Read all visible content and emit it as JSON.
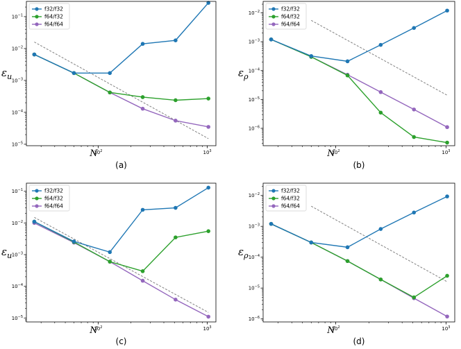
{
  "series_colors": {
    "f32/f32": "#1f77b4",
    "f64/f32": "#2ca02c",
    "f64/f64": "#9467bd",
    "reference": "#808080"
  },
  "chart_data": [
    {
      "type": "line",
      "caption": "(a)",
      "xlabel": "N",
      "ylabel": "ε",
      "ylabel_sub": "u",
      "xscale": "log",
      "yscale": "log",
      "xlim": [
        22,
        1200
      ],
      "ylim": [
        9e-06,
        0.3
      ],
      "xticks": [
        {
          "v": 100,
          "b": "10",
          "e": "2"
        },
        {
          "v": 1000,
          "b": "10",
          "e": "3"
        }
      ],
      "yticks": [
        {
          "v": 1e-05,
          "b": "10",
          "e": "−5"
        },
        {
          "v": 0.0001,
          "b": "10",
          "e": "−4"
        },
        {
          "v": 0.001,
          "b": "10",
          "e": "−3"
        },
        {
          "v": 0.01,
          "b": "10",
          "e": "−2"
        },
        {
          "v": 0.1,
          "b": "10",
          "e": "−1"
        }
      ],
      "legend_position": "top-left",
      "x": [
        26,
        60,
        128,
        256,
        512,
        1024
      ],
      "series": [
        {
          "name": "f32/f32",
          "values": [
            0.0065,
            0.0017,
            0.0017,
            0.014,
            0.018,
            0.27
          ]
        },
        {
          "name": "f64/f32",
          "values": [
            0.0065,
            0.0017,
            0.00042,
            0.0003,
            0.00024,
            0.00027
          ]
        },
        {
          "name": "f64/f64",
          "values": [
            0.0065,
            0.0017,
            0.00042,
            0.00013,
            5.5e-05,
            3.5e-05
          ]
        }
      ],
      "reference": {
        "x": [
          26,
          1024
        ],
        "y": [
          0.016,
          1.5e-05
        ]
      }
    },
    {
      "type": "line",
      "caption": "(b)",
      "xlabel": "N",
      "ylabel": "ε",
      "ylabel_sub": "ρ",
      "xscale": "log",
      "yscale": "log",
      "xlim": [
        22,
        1200
      ],
      "ylim": [
        2.5e-07,
        0.025
      ],
      "xticks": [
        {
          "v": 100,
          "b": "10",
          "e": "2"
        },
        {
          "v": 1000,
          "b": "10",
          "e": "3"
        }
      ],
      "yticks": [
        {
          "v": 1e-06,
          "b": "10",
          "e": "−6"
        },
        {
          "v": 1e-05,
          "b": "10",
          "e": "−5"
        },
        {
          "v": 0.0001,
          "b": "10",
          "e": "−4"
        },
        {
          "v": 0.001,
          "b": "10",
          "e": "−3"
        },
        {
          "v": 0.01,
          "b": "10",
          "e": "−2"
        }
      ],
      "legend_position": "top-left",
      "x": [
        26,
        60,
        128,
        256,
        512,
        1024
      ],
      "series": [
        {
          "name": "f32/f32",
          "values": [
            0.0012,
            0.00032,
            0.00021,
            0.00078,
            0.003,
            0.012
          ]
        },
        {
          "name": "f64/f32",
          "values": [
            0.0012,
            0.0003,
            6.8e-05,
            3.5e-06,
            5e-07,
            3.2e-07
          ]
        },
        {
          "name": "f64/f64",
          "values": [
            0.0012,
            0.0003,
            7.2e-05,
            1.8e-05,
            4.5e-06,
            1.1e-06
          ]
        }
      ],
      "reference": {
        "x": [
          60,
          1024
        ],
        "y": [
          0.0055,
          1.4e-05
        ]
      }
    },
    {
      "type": "line",
      "caption": "(c)",
      "xlabel": "N",
      "ylabel": "ε",
      "ylabel_sub": "u",
      "xscale": "log",
      "yscale": "log",
      "xlim": [
        22,
        1200
      ],
      "ylim": [
        7.5e-06,
        0.18
      ],
      "xticks": [
        {
          "v": 100,
          "b": "10",
          "e": "2"
        },
        {
          "v": 1000,
          "b": "10",
          "e": "3"
        }
      ],
      "yticks": [
        {
          "v": 1e-05,
          "b": "10",
          "e": "−5"
        },
        {
          "v": 0.0001,
          "b": "10",
          "e": "−4"
        },
        {
          "v": 0.001,
          "b": "10",
          "e": "−3"
        },
        {
          "v": 0.01,
          "b": "10",
          "e": "−2"
        },
        {
          "v": 0.1,
          "b": "10",
          "e": "−1"
        }
      ],
      "legend_position": "top-left",
      "x": [
        26,
        60,
        128,
        256,
        512,
        1024
      ],
      "series": [
        {
          "name": "f32/f32",
          "values": [
            0.011,
            0.0026,
            0.0012,
            0.026,
            0.03,
            0.13
          ]
        },
        {
          "name": "f64/f32",
          "values": [
            0.011,
            0.0025,
            0.0006,
            0.0003,
            0.0035,
            0.0055
          ]
        },
        {
          "name": "f64/f64",
          "values": [
            0.01,
            0.0024,
            0.0006,
            0.00015,
            3.8e-05,
            1.1e-05
          ]
        }
      ],
      "reference": {
        "x": [
          26,
          1024
        ],
        "y": [
          0.015,
          1.5e-05
        ]
      }
    },
    {
      "type": "line",
      "caption": "(d)",
      "xlabel": "N",
      "ylabel": "ε",
      "ylabel_sub": "ρ",
      "xscale": "log",
      "yscale": "log",
      "xlim": [
        22,
        1200
      ],
      "ylim": [
        8e-07,
        0.025
      ],
      "xticks": [
        {
          "v": 100,
          "b": "10",
          "e": "2"
        },
        {
          "v": 1000,
          "b": "10",
          "e": "3"
        }
      ],
      "yticks": [
        {
          "v": 1e-06,
          "b": "10",
          "e": "−6"
        },
        {
          "v": 1e-05,
          "b": "10",
          "e": "−5"
        },
        {
          "v": 0.0001,
          "b": "10",
          "e": "−4"
        },
        {
          "v": 0.001,
          "b": "10",
          "e": "−3"
        },
        {
          "v": 0.01,
          "b": "10",
          "e": "−2"
        }
      ],
      "legend_position": "top-left",
      "x": [
        26,
        60,
        128,
        256,
        512,
        1024
      ],
      "series": [
        {
          "name": "f32/f32",
          "values": [
            0.0012,
            0.0003,
            0.00021,
            0.00082,
            0.0028,
            0.0093
          ]
        },
        {
          "name": "f64/f32",
          "values": [
            0.0012,
            0.0003,
            7.5e-05,
            1.9e-05,
            5e-06,
            2.5e-05
          ]
        },
        {
          "name": "f64/f64",
          "values": [
            0.0012,
            0.0003,
            7.5e-05,
            1.9e-05,
            4.7e-06,
            1.2e-06
          ]
        }
      ],
      "reference": {
        "x": [
          60,
          1024
        ],
        "y": [
          0.0045,
          1.6e-05
        ]
      }
    }
  ]
}
